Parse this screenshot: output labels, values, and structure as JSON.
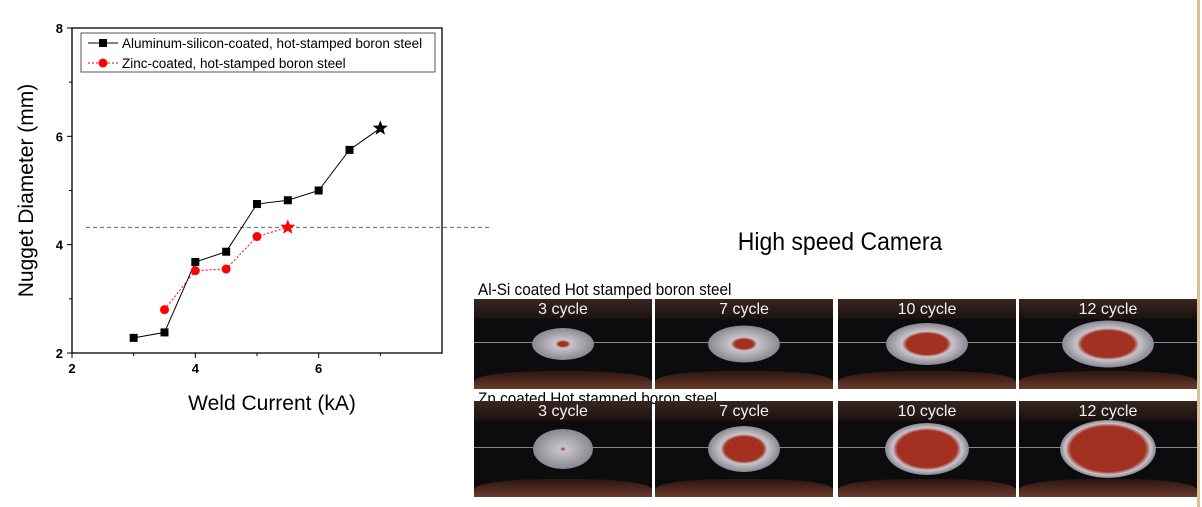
{
  "chart_data": {
    "type": "line",
    "xlabel": "Weld Current (kA)",
    "ylabel": "Nugget Diameter (mm)",
    "xlim": [
      2,
      8
    ],
    "ylim": [
      2,
      8
    ],
    "xticks": [
      "2",
      "4",
      "6"
    ],
    "yticks": [
      "2",
      "4",
      "6",
      "8"
    ],
    "legend_position": "top",
    "reference_line_y": 4.32,
    "series": [
      {
        "name": "Aluminum-silicon-coated, hot-stamped boron steel",
        "color": "#000000",
        "marker": "square",
        "line": "solid",
        "x": [
          3,
          3.5,
          4,
          4.5,
          5,
          5.5,
          6,
          6.5,
          7
        ],
        "y": [
          2.28,
          2.38,
          3.68,
          3.87,
          4.75,
          4.82,
          5.0,
          5.75,
          6.15
        ],
        "end_marker": "star"
      },
      {
        "name": "Zinc-coated, hot-stamped boron steel",
        "color": "#ff0000",
        "marker": "circle",
        "line": "dotted",
        "x": [
          3.5,
          4,
          4.5,
          5,
          5.5
        ],
        "y": [
          2.8,
          3.52,
          3.55,
          4.15,
          4.32
        ],
        "end_marker": "star"
      }
    ]
  },
  "camera": {
    "title": "High speed Camera",
    "rows": [
      {
        "label": "Al-Si coated Hot stamped boron steel",
        "frames": [
          {
            "label": "3 cycle",
            "core": 10
          },
          {
            "label": "7 cycle",
            "core": 18
          },
          {
            "label": "10 cycle",
            "core": 35
          },
          {
            "label": "12 cycle",
            "core": 40
          }
        ]
      },
      {
        "label": "Zn coated Hot stamped boron steel",
        "frames": [
          {
            "label": "3 cycle",
            "core": 0
          },
          {
            "label": "7 cycle",
            "core": 38
          },
          {
            "label": "10 cycle",
            "core": 50
          },
          {
            "label": "12 cycle",
            "core": 55
          }
        ]
      }
    ]
  }
}
